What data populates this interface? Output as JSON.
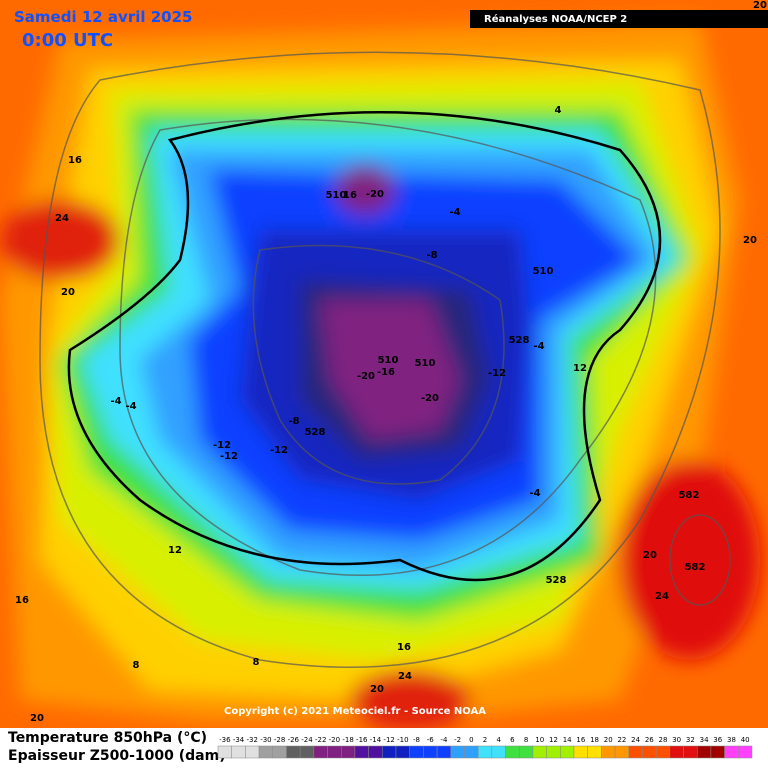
{
  "header": {
    "date": "Samedi 12 avril 2025",
    "time": "0:00 UTC",
    "source": "Réanalyses NOAA/NCEP 2"
  },
  "map_labels": [
    16,
    24,
    20,
    510,
    16,
    -20,
    -4,
    -8,
    4,
    20,
    510,
    528,
    -4,
    12,
    20,
    510,
    510,
    -16,
    -20,
    -12,
    -20,
    -4,
    -4,
    -8,
    528,
    -12,
    -12,
    -12,
    -4,
    582,
    12,
    20,
    582,
    528,
    24,
    16,
    8,
    8,
    16,
    24,
    20,
    20
  ],
  "copyright": "Copyright (c) 2021 Meteociel.fr - Source NOAA",
  "legend": {
    "temperature": "Temperature 850hPa (°C)",
    "thickness": "Epaisseur Z500-1000 (dam)"
  },
  "colorbar_ticks": [
    -36,
    -34,
    -32,
    -30,
    -28,
    -26,
    -24,
    -22,
    -20,
    -18,
    -16,
    -14,
    -12,
    -10,
    -8,
    -6,
    -4,
    -2,
    0,
    2,
    4,
    6,
    8,
    10,
    12,
    14,
    16,
    18,
    20,
    22,
    24,
    26,
    28,
    30,
    32,
    34,
    36,
    38,
    40
  ]
}
